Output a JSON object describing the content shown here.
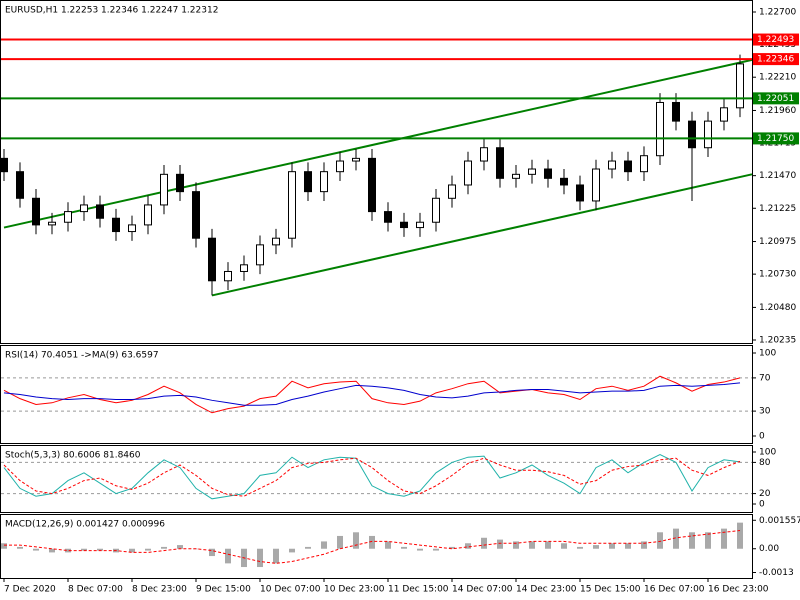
{
  "chart_data": [
    {
      "type": "candlestick",
      "title": "EURUSD,H1  1.22253 1.22346 1.22247 1.22312",
      "categories": [
        "7 Dec 2020",
        null,
        null,
        null,
        "8 Dec 07:00",
        null,
        null,
        null,
        "8 Dec 23:00",
        null,
        null,
        null,
        "9 Dec 15:00",
        null,
        null,
        null,
        "10 Dec 07:00",
        null,
        null,
        null,
        "10 Dec 23:00",
        null,
        null,
        null,
        "11 Dec 15:00",
        null,
        null,
        null,
        "14 Dec 07:00",
        null,
        null,
        null,
        "14 Dec 23:00",
        null,
        null,
        null,
        "15 Dec 15:00",
        null,
        null,
        null,
        "16 Dec 07:00",
        null,
        null,
        null,
        "16 Dec 23:00",
        null,
        null
      ],
      "open": [
        1.216,
        1.215,
        1.213,
        1.211,
        1.2112,
        1.212,
        1.2125,
        1.2115,
        1.2105,
        1.211,
        1.2125,
        1.2148,
        1.2135,
        1.21,
        1.2068,
        1.2075,
        1.208,
        1.2095,
        1.21,
        1.215,
        1.2135,
        1.215,
        1.2158,
        1.216,
        1.212,
        1.2112,
        1.2108,
        1.2112,
        1.213,
        1.214,
        1.2158,
        1.2168,
        1.2145,
        1.2148,
        1.2152,
        1.2145,
        1.214,
        1.2128,
        1.2152,
        1.2158,
        1.215,
        1.2162,
        1.2202,
        1.2188,
        1.2168,
        1.2188,
        1.2198
      ],
      "high": [
        1.2167,
        1.2157,
        1.2137,
        1.2119,
        1.2127,
        1.2132,
        1.2132,
        1.2122,
        1.2117,
        1.2132,
        1.2155,
        1.2155,
        1.2142,
        1.2107,
        1.2082,
        1.2087,
        1.2102,
        1.2107,
        1.2157,
        1.2157,
        1.2157,
        1.2165,
        1.2167,
        1.2167,
        1.2127,
        1.2119,
        1.2119,
        1.2137,
        1.2147,
        1.2165,
        1.2175,
        1.2175,
        1.2155,
        1.2159,
        1.2159,
        1.2152,
        1.2147,
        1.2159,
        1.2165,
        1.2165,
        1.2169,
        1.2209,
        1.2209,
        1.2195,
        1.2195,
        1.2205,
        1.2238
      ],
      "low": [
        1.2143,
        1.2123,
        1.2103,
        1.2103,
        1.2105,
        1.2113,
        1.2108,
        1.2098,
        1.2098,
        1.2103,
        1.2118,
        1.2128,
        1.2093,
        1.2057,
        1.2061,
        1.2068,
        1.2073,
        1.2088,
        1.2093,
        1.2128,
        1.2128,
        1.2143,
        1.2151,
        1.2113,
        1.2105,
        1.2101,
        1.2101,
        1.2105,
        1.2123,
        1.2133,
        1.2151,
        1.2138,
        1.2138,
        1.2141,
        1.2138,
        1.2133,
        1.2121,
        1.2121,
        1.2145,
        1.2143,
        1.2143,
        1.2155,
        1.2181,
        1.2128,
        1.2161,
        1.2181,
        1.2191
      ],
      "close": [
        1.215,
        1.213,
        1.211,
        1.2112,
        1.212,
        1.2125,
        1.2115,
        1.2105,
        1.211,
        1.2125,
        1.2148,
        1.2135,
        1.21,
        1.2068,
        1.2075,
        1.208,
        1.2095,
        1.21,
        1.215,
        1.2135,
        1.215,
        1.2158,
        1.216,
        1.212,
        1.2112,
        1.2108,
        1.2112,
        1.213,
        1.214,
        1.2158,
        1.2168,
        1.2145,
        1.2148,
        1.2152,
        1.2145,
        1.214,
        1.2128,
        1.2152,
        1.2158,
        1.215,
        1.2162,
        1.2202,
        1.2188,
        1.2168,
        1.2188,
        1.2198,
        1.2231
      ],
      "ylim": [
        1.20235,
        1.227
      ],
      "yticks": [
        {
          "value": 1.227,
          "label": "1.22700"
        },
        1.22455,
        {
          "value": 1.2221,
          "label": "1.22210"
        },
        {
          "value": 1.2196,
          "label": "1.21960"
        },
        1.21715,
        {
          "value": 1.2147,
          "label": "1.21470"
        },
        1.21225,
        1.20975,
        {
          "value": 1.2073,
          "label": "1.20730"
        },
        {
          "value": 1.2048,
          "label": "1.20480"
        },
        1.20235
      ],
      "hlines": [
        {
          "value": 1.22493,
          "color": "#ff0000"
        },
        {
          "value": 1.22346,
          "color": "#ff0000"
        },
        {
          "value": 1.22051,
          "color": "#008000"
        },
        {
          "value": 1.2175,
          "label": "1.21750",
          "color": "#008000"
        }
      ],
      "trendlines": [
        {
          "x": [
            0,
            46.75
          ],
          "y": [
            1.2108,
            1.2234
          ],
          "color": "#008000"
        },
        {
          "x": [
            13,
            46.75
          ],
          "y": [
            1.2057,
            1.2148
          ],
          "color": "#008000"
        }
      ]
    },
    {
      "type": "line",
      "title": "RSI(14) 70.4051  ->MA(9) 63.6597",
      "ylim": [
        0,
        100
      ],
      "yticks": [
        100,
        70,
        30,
        0
      ],
      "levels": [
        70,
        30
      ],
      "series": [
        {
          "color": "#ff0000",
          "values": [
            55,
            45,
            38,
            40,
            46,
            50,
            44,
            40,
            43,
            50,
            60,
            52,
            38,
            28,
            33,
            36,
            45,
            48,
            66,
            58,
            63,
            65,
            66,
            45,
            40,
            38,
            42,
            52,
            57,
            63,
            66,
            52,
            54,
            56,
            52,
            50,
            44,
            57,
            60,
            55,
            60,
            72,
            64,
            54,
            62,
            65,
            70
          ]
        },
        {
          "color": "#0000cd",
          "values": [
            52,
            50,
            47,
            45,
            44,
            45,
            45,
            44,
            44,
            45,
            48,
            49,
            47,
            43,
            40,
            37,
            37,
            38,
            44,
            48,
            53,
            57,
            61,
            60,
            58,
            55,
            50,
            47,
            46,
            48,
            52,
            53,
            55,
            56,
            56,
            54,
            52,
            53,
            54,
            54,
            55,
            60,
            61,
            60,
            61,
            62,
            64
          ]
        }
      ]
    },
    {
      "type": "line",
      "title": "Stoch(5,3,3) 80.6006 81.8460",
      "ylim": [
        0,
        100
      ],
      "yticks": [
        100,
        80,
        20,
        0
      ],
      "levels": [
        80,
        20
      ],
      "series": [
        {
          "color": "#20b2aa",
          "values": [
            70,
            30,
            15,
            20,
            45,
            60,
            40,
            20,
            30,
            60,
            85,
            70,
            30,
            10,
            15,
            20,
            55,
            60,
            90,
            70,
            85,
            90,
            88,
            35,
            20,
            15,
            25,
            60,
            80,
            90,
            92,
            50,
            60,
            75,
            55,
            40,
            20,
            70,
            85,
            60,
            80,
            95,
            80,
            25,
            70,
            85,
            81
          ]
        },
        {
          "color": "#ff0000",
          "dashed": true,
          "values": [
            75,
            45,
            25,
            20,
            30,
            45,
            50,
            35,
            28,
            40,
            60,
            75,
            55,
            30,
            18,
            15,
            30,
            45,
            70,
            78,
            80,
            85,
            88,
            70,
            45,
            25,
            20,
            35,
            55,
            78,
            88,
            75,
            65,
            65,
            62,
            55,
            38,
            45,
            65,
            72,
            75,
            85,
            88,
            65,
            55,
            70,
            82
          ]
        }
      ]
    },
    {
      "type": "bar",
      "title": "MACD(12,26,9) 0.001427 0.000996",
      "ylim": [
        -0.0016,
        0.0019
      ],
      "yticks": [
        0.001557,
        {
          "value": 0,
          "label": "0.00"
        },
        -0.0013
      ],
      "series": [
        {
          "type": "bar",
          "color": "#a9a9a9",
          "values": [
            0.0003,
            0.0001,
            -0.0001,
            -0.0002,
            -0.0002,
            -0.0001,
            -0.0001,
            -0.0002,
            -0.0002,
            -0.0001,
            0.0001,
            0.0002,
            0,
            -0.0004,
            -0.0008,
            -0.001,
            -0.001,
            -0.0008,
            -0.0002,
            0.0001,
            0.0004,
            0.0007,
            0.0009,
            0.0007,
            0.0004,
            0.0001,
            -0.0001,
            -0.0001,
            0.0001,
            0.0003,
            0.0006,
            0.0005,
            0.0004,
            0.0004,
            0.0004,
            0.0003,
            0.0001,
            0.0002,
            0.0003,
            0.0003,
            0.0004,
            0.0009,
            0.0011,
            0.0009,
            0.0009,
            0.0011,
            0.001427
          ]
        },
        {
          "type": "line",
          "color": "#ff0000",
          "dashed": true,
          "values": [
            0.0002,
            0.0002,
            0.0001,
            0,
            -0.0001,
            -0.0001,
            -0.0001,
            -0.0001,
            -0.0002,
            -0.0002,
            -0.0001,
            0,
            0,
            -0.0001,
            -0.0003,
            -0.0005,
            -0.0007,
            -0.0008,
            -0.0007,
            -0.0005,
            -0.0003,
            0,
            0.0002,
            0.0004,
            0.0004,
            0.0003,
            0.0002,
            0.0001,
            0,
            0.0001,
            0.0002,
            0.0003,
            0.0003,
            0.0004,
            0.0004,
            0.0004,
            0.0003,
            0.0003,
            0.0003,
            0.0003,
            0.0003,
            0.0004,
            0.0006,
            0.0007,
            0.0008,
            0.0009,
            0.000996
          ]
        }
      ]
    }
  ]
}
